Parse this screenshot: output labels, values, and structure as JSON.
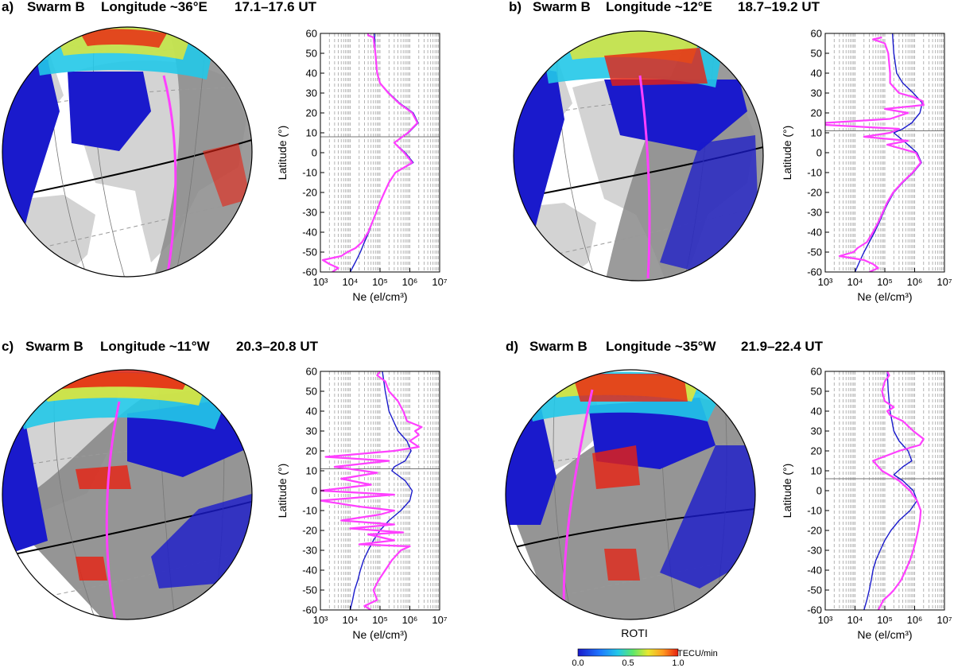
{
  "figure": {
    "colorbar": {
      "label": "ROTI",
      "unit": "TECU/min",
      "ticks": [
        "0.0",
        "0.5",
        "1.0"
      ],
      "colors": [
        "#1a1acc",
        "#1e78ff",
        "#22c8e8",
        "#5ee86a",
        "#e8e830",
        "#ff9a20",
        "#e82010"
      ]
    },
    "colors": {
      "land_day": "#d3d3d3",
      "land_night": "#8a8a8a",
      "ocean": "#ffffff",
      "night": "#777777",
      "roti_low": "#1a1acc",
      "track": "#ff40ff",
      "model_line": "#1a1acc",
      "measured_line": "#ff40ff"
    }
  },
  "chart_data": [
    {
      "type": "line",
      "panel": "a)",
      "satellite": "Swarm B",
      "longitude": "Longitude ~36°E",
      "time": "17.1–17.6 UT",
      "xlabel": "Ne  (el/cm³)",
      "ylabel": "Latitude (°)",
      "x_scale": "log",
      "xlim": [
        1000,
        10000000
      ],
      "ylim": [
        -60,
        60
      ],
      "x_ticks": [
        "10³",
        "10⁴",
        "10⁵",
        "10⁶",
        "10⁷"
      ],
      "y_ticks": [
        "60",
        "50",
        "40",
        "30",
        "20",
        "10",
        "0",
        "-10",
        "-20",
        "-30",
        "-40",
        "-50",
        "-60"
      ],
      "hline_latitude": 8,
      "series": [
        {
          "color": "model",
          "points": [
            [
              -60,
              10000
            ],
            [
              -55,
              15000
            ],
            [
              -50,
              22000
            ],
            [
              -45,
              30000
            ],
            [
              -40,
              42000
            ],
            [
              -35,
              55000
            ],
            [
              -30,
              75000
            ],
            [
              -25,
              100000
            ],
            [
              -20,
              140000
            ],
            [
              -15,
              200000
            ],
            [
              -10,
              330000
            ],
            [
              -5,
              1300000
            ],
            [
              0,
              700000
            ],
            [
              5,
              300000
            ],
            [
              10,
              900000
            ],
            [
              15,
              1900000
            ],
            [
              20,
              1300000
            ],
            [
              25,
              450000
            ],
            [
              30,
              200000
            ],
            [
              35,
              100000
            ],
            [
              40,
              80000
            ],
            [
              50,
              70000
            ],
            [
              60,
              65000
            ]
          ]
        },
        {
          "color": "measured",
          "points": [
            [
              -60,
              2500
            ],
            [
              -58,
              4000
            ],
            [
              -56,
              2000
            ],
            [
              -54,
              1200
            ],
            [
              -52,
              5000
            ],
            [
              -50,
              8000
            ],
            [
              -48,
              15000
            ],
            [
              -45,
              25000
            ],
            [
              -40,
              40000
            ],
            [
              -35,
              55000
            ],
            [
              -30,
              75000
            ],
            [
              -25,
              100000
            ],
            [
              -20,
              140000
            ],
            [
              -15,
              200000
            ],
            [
              -10,
              330000
            ],
            [
              -5,
              1200000
            ],
            [
              0,
              650000
            ],
            [
              5,
              300000
            ],
            [
              10,
              850000
            ],
            [
              15,
              1800000
            ],
            [
              20,
              1200000
            ],
            [
              25,
              420000
            ],
            [
              30,
              190000
            ],
            [
              35,
              100000
            ],
            [
              40,
              80000
            ],
            [
              50,
              70000
            ],
            [
              58,
              60000
            ],
            [
              59,
              40000
            ],
            [
              60,
              40000
            ]
          ]
        }
      ]
    },
    {
      "type": "line",
      "panel": "b)",
      "satellite": "Swarm B",
      "longitude": "Longitude ~12°E",
      "time": "18.7–19.2 UT",
      "xlabel": "Ne  (el/cm³)",
      "ylabel": "Latitude (°)",
      "x_scale": "log",
      "xlim": [
        1000,
        10000000
      ],
      "ylim": [
        -60,
        60
      ],
      "x_ticks": [
        "10³",
        "10⁴",
        "10⁵",
        "10⁶",
        "10⁷"
      ],
      "y_ticks": [
        "60",
        "50",
        "40",
        "30",
        "20",
        "10",
        "0",
        "-10",
        "-20",
        "-30",
        "-40",
        "-50",
        "-60"
      ],
      "hline_latitude": 11,
      "series": [
        {
          "color": "model",
          "points": [
            [
              -60,
              10000
            ],
            [
              -55,
              14000
            ],
            [
              -50,
              20000
            ],
            [
              -45,
              30000
            ],
            [
              -40,
              45000
            ],
            [
              -35,
              65000
            ],
            [
              -30,
              90000
            ],
            [
              -25,
              130000
            ],
            [
              -20,
              200000
            ],
            [
              -15,
              400000
            ],
            [
              -10,
              900000
            ],
            [
              -5,
              1700000
            ],
            [
              0,
              1200000
            ],
            [
              5,
              500000
            ],
            [
              10,
              200000
            ],
            [
              12,
              400000
            ],
            [
              15,
              800000
            ],
            [
              20,
              1500000
            ],
            [
              25,
              1800000
            ],
            [
              30,
              900000
            ],
            [
              35,
              400000
            ],
            [
              40,
              250000
            ],
            [
              50,
              200000
            ],
            [
              60,
              180000
            ]
          ]
        },
        {
          "color": "measured",
          "points": [
            [
              -60,
              30000
            ],
            [
              -58,
              60000
            ],
            [
              -56,
              40000
            ],
            [
              -54,
              20000
            ],
            [
              -52,
              3000
            ],
            [
              -50,
              9000
            ],
            [
              -48,
              12000
            ],
            [
              -45,
              25000
            ],
            [
              -40,
              40000
            ],
            [
              -35,
              60000
            ],
            [
              -30,
              85000
            ],
            [
              -25,
              120000
            ],
            [
              -20,
              190000
            ],
            [
              -15,
              380000
            ],
            [
              -10,
              850000
            ],
            [
              -5,
              1600000
            ],
            [
              0,
              1100000
            ],
            [
              4,
              120000
            ],
            [
              6,
              600000
            ],
            [
              8,
              20000
            ],
            [
              10,
              150000
            ],
            [
              12,
              300000
            ],
            [
              14,
              1000
            ],
            [
              15,
              1000
            ],
            [
              17,
              150000
            ],
            [
              20,
              600000
            ],
            [
              22,
              100000
            ],
            [
              24,
              2000000
            ],
            [
              26,
              1800000
            ],
            [
              28,
              900000
            ],
            [
              30,
              300000
            ],
            [
              35,
              150000
            ],
            [
              40,
              150000
            ],
            [
              50,
              130000
            ],
            [
              55,
              100000
            ],
            [
              57,
              40000
            ],
            [
              58,
              80000
            ]
          ]
        }
      ]
    },
    {
      "type": "line",
      "panel": "c)",
      "satellite": "Swarm B",
      "longitude": "Longitude ~11°W",
      "time": "20.3–20.8 UT",
      "xlabel": "Ne  (el/cm³)",
      "ylabel": "Latitude (°)",
      "x_scale": "log",
      "xlim": [
        1000,
        10000000
      ],
      "ylim": [
        -60,
        60
      ],
      "x_ticks": [
        "10³",
        "10⁴",
        "10⁵",
        "10⁶",
        "10⁷"
      ],
      "y_ticks": [
        "60",
        "50",
        "40",
        "30",
        "20",
        "10",
        "0",
        "-10",
        "-20",
        "-30",
        "-40",
        "-50",
        "-60"
      ],
      "hline_latitude": 11,
      "series": [
        {
          "color": "model",
          "points": [
            [
              -60,
              10000
            ],
            [
              -55,
              12000
            ],
            [
              -50,
              14000
            ],
            [
              -45,
              18000
            ],
            [
              -40,
              22000
            ],
            [
              -35,
              28000
            ],
            [
              -30,
              40000
            ],
            [
              -25,
              60000
            ],
            [
              -20,
              100000
            ],
            [
              -15,
              200000
            ],
            [
              -10,
              500000
            ],
            [
              -5,
              1000000
            ],
            [
              0,
              1200000
            ],
            [
              5,
              700000
            ],
            [
              10,
              250000
            ],
            [
              12,
              300000
            ],
            [
              15,
              700000
            ],
            [
              20,
              1100000
            ],
            [
              25,
              800000
            ],
            [
              30,
              400000
            ],
            [
              40,
              200000
            ],
            [
              50,
              150000
            ],
            [
              60,
              120000
            ]
          ]
        },
        {
          "color": "measured",
          "points": [
            [
              -60,
              50000
            ],
            [
              -58,
              30000
            ],
            [
              -55,
              80000
            ],
            [
              -50,
              60000
            ],
            [
              -45,
              90000
            ],
            [
              -40,
              150000
            ],
            [
              -35,
              250000
            ],
            [
              -30,
              500000
            ],
            [
              -28,
              1000000
            ],
            [
              -27,
              20000
            ],
            [
              -25,
              300000
            ],
            [
              -22,
              40000
            ],
            [
              -21,
              600000
            ],
            [
              -19,
              10000
            ],
            [
              -17,
              300000
            ],
            [
              -15,
              5000
            ],
            [
              -12,
              100000
            ],
            [
              -10,
              300000
            ],
            [
              -8,
              20000
            ],
            [
              -5,
              1000
            ],
            [
              -2,
              300000
            ],
            [
              0,
              1000
            ],
            [
              3,
              50000
            ],
            [
              6,
              5000
            ],
            [
              9,
              80000
            ],
            [
              12,
              3000
            ],
            [
              15,
              200000
            ],
            [
              17,
              1500
            ],
            [
              20,
              300000
            ],
            [
              22,
              2000000
            ],
            [
              25,
              1000000
            ],
            [
              28,
              2000000
            ],
            [
              30,
              1500000
            ],
            [
              32,
              2500000
            ],
            [
              35,
              800000
            ],
            [
              40,
              600000
            ],
            [
              45,
              400000
            ],
            [
              50,
              200000
            ],
            [
              55,
              150000
            ],
            [
              58,
              80000
            ],
            [
              60,
              100000
            ]
          ]
        }
      ]
    },
    {
      "type": "line",
      "panel": "d)",
      "satellite": "Swarm B",
      "longitude": "Longitude ~35°W",
      "time": "21.9–22.4 UT",
      "xlabel": "Ne  (el/cm³)",
      "ylabel": "Latitude (°)",
      "x_scale": "log",
      "xlim": [
        1000,
        10000000
      ],
      "ylim": [
        -60,
        60
      ],
      "x_ticks": [
        "10³",
        "10⁴",
        "10⁵",
        "10⁶",
        "10⁷"
      ],
      "y_ticks": [
        "60",
        "50",
        "40",
        "30",
        "20",
        "10",
        "0",
        "-10",
        "-20",
        "-30",
        "-40",
        "-50",
        "-60"
      ],
      "hline_latitude": 6,
      "series": [
        {
          "color": "model",
          "points": [
            [
              -60,
              20000
            ],
            [
              -55,
              25000
            ],
            [
              -50,
              30000
            ],
            [
              -45,
              35000
            ],
            [
              -40,
              40000
            ],
            [
              -35,
              50000
            ],
            [
              -30,
              70000
            ],
            [
              -25,
              100000
            ],
            [
              -20,
              160000
            ],
            [
              -15,
              300000
            ],
            [
              -10,
              700000
            ],
            [
              -5,
              1200000
            ],
            [
              0,
              900000
            ],
            [
              5,
              400000
            ],
            [
              8,
              200000
            ],
            [
              12,
              400000
            ],
            [
              15,
              800000
            ],
            [
              20,
              600000
            ],
            [
              25,
              300000
            ],
            [
              30,
              200000
            ],
            [
              40,
              150000
            ],
            [
              50,
              130000
            ],
            [
              60,
              120000
            ]
          ]
        },
        {
          "color": "measured",
          "points": [
            [
              -60,
              60000
            ],
            [
              -55,
              90000
            ],
            [
              -52,
              150000
            ],
            [
              -50,
              200000
            ],
            [
              -45,
              350000
            ],
            [
              -40,
              500000
            ],
            [
              -35,
              700000
            ],
            [
              -30,
              900000
            ],
            [
              -25,
              1100000
            ],
            [
              -20,
              1300000
            ],
            [
              -15,
              1500000
            ],
            [
              -10,
              1600000
            ],
            [
              -5,
              1200000
            ],
            [
              0,
              700000
            ],
            [
              5,
              300000
            ],
            [
              10,
              80000
            ],
            [
              15,
              40000
            ],
            [
              20,
              300000
            ],
            [
              23,
              1500000
            ],
            [
              26,
              2000000
            ],
            [
              30,
              900000
            ],
            [
              35,
              400000
            ],
            [
              38,
              150000
            ],
            [
              40,
              120000
            ],
            [
              42,
              200000
            ],
            [
              45,
              100000
            ],
            [
              50,
              80000
            ],
            [
              55,
              100000
            ],
            [
              58,
              140000
            ],
            [
              60,
              120000
            ]
          ]
        }
      ]
    }
  ]
}
